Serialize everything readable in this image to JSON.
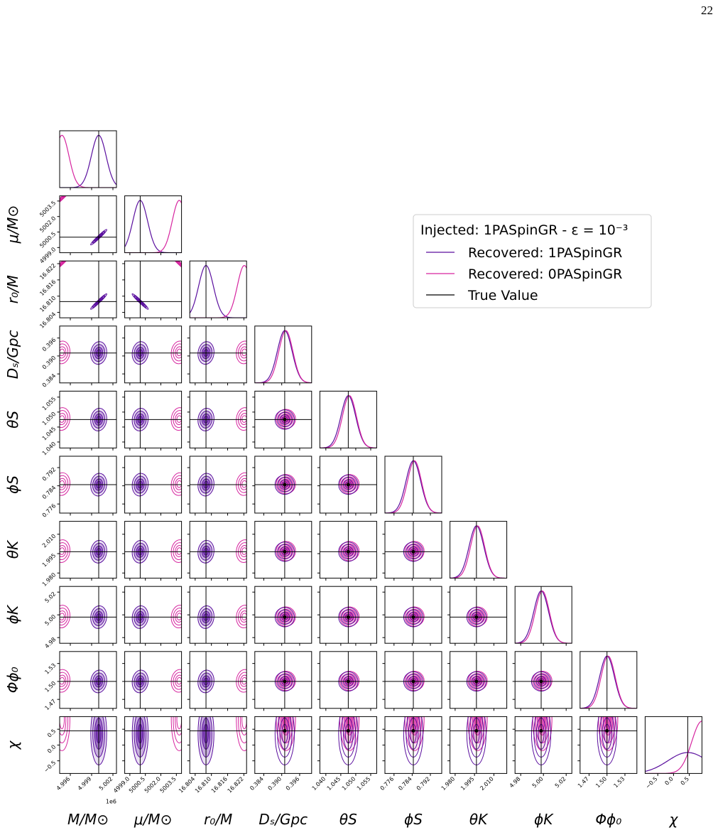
{
  "page_number": "22",
  "chart_data": {
    "type": "corner",
    "offset_label": "1e6",
    "truth_name": "True Value",
    "truth_color": "#000000",
    "series": [
      {
        "name": "Recovered: 1PASpinGR",
        "color": "#5a0f9e"
      },
      {
        "name": "Recovered: 0PASpinGR",
        "color": "#d6249f"
      }
    ],
    "legend": {
      "title": "Injected: 1PASpinGR - ε = 10⁻³",
      "corner": "upper right"
    },
    "parameters": [
      {
        "label": "M/M⊙",
        "lim": [
          4.9945,
          5.0025
        ],
        "truth": 5.0,
        "ticks": [
          4.996,
          4.999,
          5.002
        ]
      },
      {
        "label": "μ/M⊙",
        "lim": [
          4998.5,
          5004.0
        ],
        "truth": 5000.0,
        "ticks": [
          {
            "value": 4999,
            "label": "4999.0"
          },
          5000.5,
          {
            "value": 5002,
            "label": "5002.0"
          },
          5003.5
        ]
      },
      {
        "label": "r₀/M",
        "lim": [
          16.802,
          16.823
        ],
        "truth": 16.808,
        "ticks": [
          16.804,
          {
            "value": 16.81,
            "label": "16.810"
          },
          16.816,
          16.822
        ]
      },
      {
        "label": "Dₛ/Gpc",
        "lim": [
          0.381,
          0.4
        ],
        "truth": 0.391,
        "ticks": [
          0.384,
          {
            "value": 0.39,
            "label": "0.390"
          },
          0.396
        ]
      },
      {
        "label": "θS",
        "lim": [
          1.038,
          1.057
        ],
        "truth": 1.0475,
        "ticks": [
          {
            "value": 1.04,
            "label": "1.040"
          },
          1.045,
          {
            "value": 1.05,
            "label": "1.050"
          },
          1.055
        ]
      },
      {
        "label": "ϕS",
        "lim": [
          0.772,
          0.797
        ],
        "truth": 0.7845,
        "ticks": [
          0.776,
          0.784,
          0.792
        ]
      },
      {
        "label": "θK",
        "lim": [
          1.976,
          2.02
        ],
        "truth": 1.9965,
        "ticks": [
          {
            "value": 1.98,
            "label": "1.980"
          },
          1.995,
          {
            "value": 2.01,
            "label": "2.010"
          }
        ]
      },
      {
        "label": "ϕK",
        "lim": [
          4.975,
          5.025
        ],
        "truth": 4.998,
        "ticks": [
          4.98,
          {
            "value": 5,
            "label": "5.00"
          },
          5.02
        ]
      },
      {
        "label": "Φϕ₀",
        "lim": [
          1.455,
          1.55
        ],
        "truth": 1.5,
        "ticks": [
          1.47,
          {
            "value": 1.5,
            "label": "1.50"
          },
          1.53
        ]
      },
      {
        "label": "χ",
        "lim": [
          -0.9,
          0.9
        ],
        "truth": 0.45,
        "ticks": [
          {
            "value": -0.5,
            "label": "−0.5"
          },
          {
            "value": 0,
            "label": "0.0"
          },
          0.5
        ]
      }
    ]
  }
}
